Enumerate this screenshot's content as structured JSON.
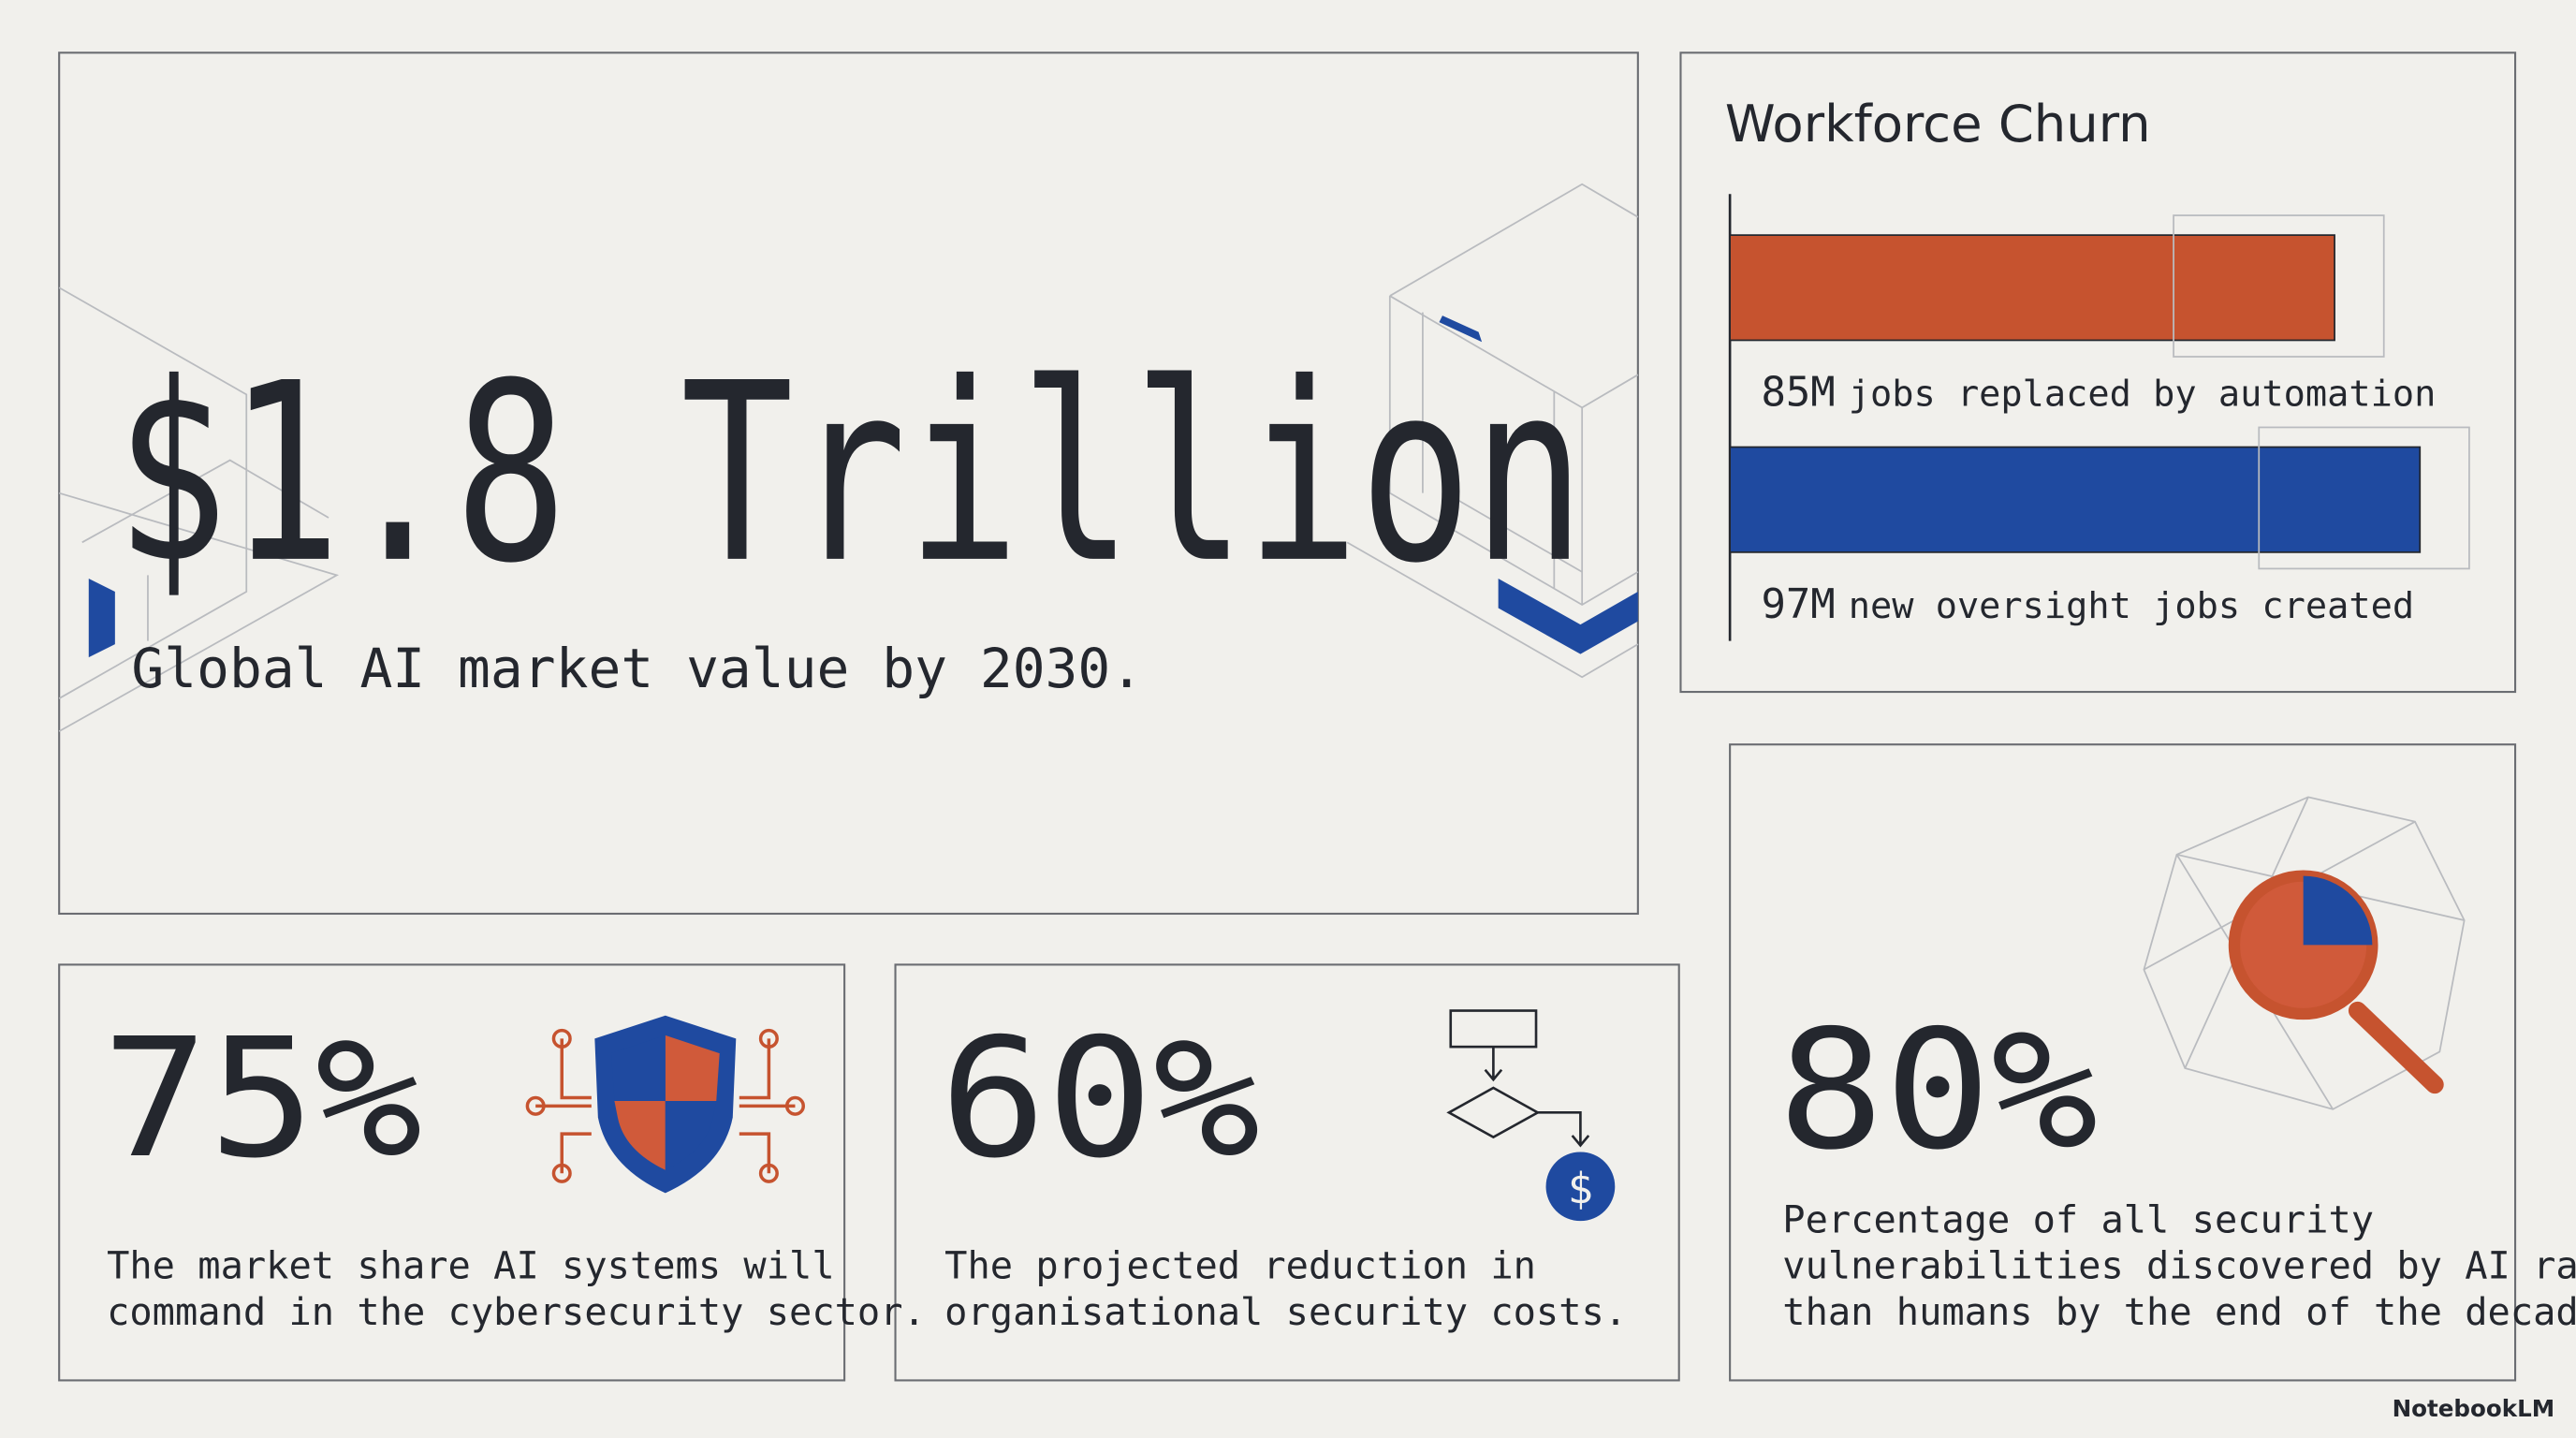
{
  "main": {
    "value": "$1.8 Trillion",
    "caption": "Global AI market value by 2030."
  },
  "churn": {
    "title": "Workforce Churn",
    "bars": [
      {
        "value": 85,
        "value_label": "85M",
        "label": "jobs replaced by automation",
        "color": "#c6532f"
      },
      {
        "value": 97,
        "value_label": "97M",
        "label": "new oversight jobs created",
        "color": "#1f4aa0"
      }
    ]
  },
  "stats": [
    {
      "value": "75%",
      "caption": [
        "The market share AI systems will",
        "command in the cybersecurity sector."
      ]
    },
    {
      "value": "60%",
      "caption": [
        "The projected reduction in",
        "organisational security costs."
      ]
    },
    {
      "value": "80%",
      "caption": [
        "Percentage of all security",
        "vulnerabilities discovered by AI rather",
        "than humans by the end of the decade."
      ]
    }
  ],
  "brand": "NotebookLM"
}
